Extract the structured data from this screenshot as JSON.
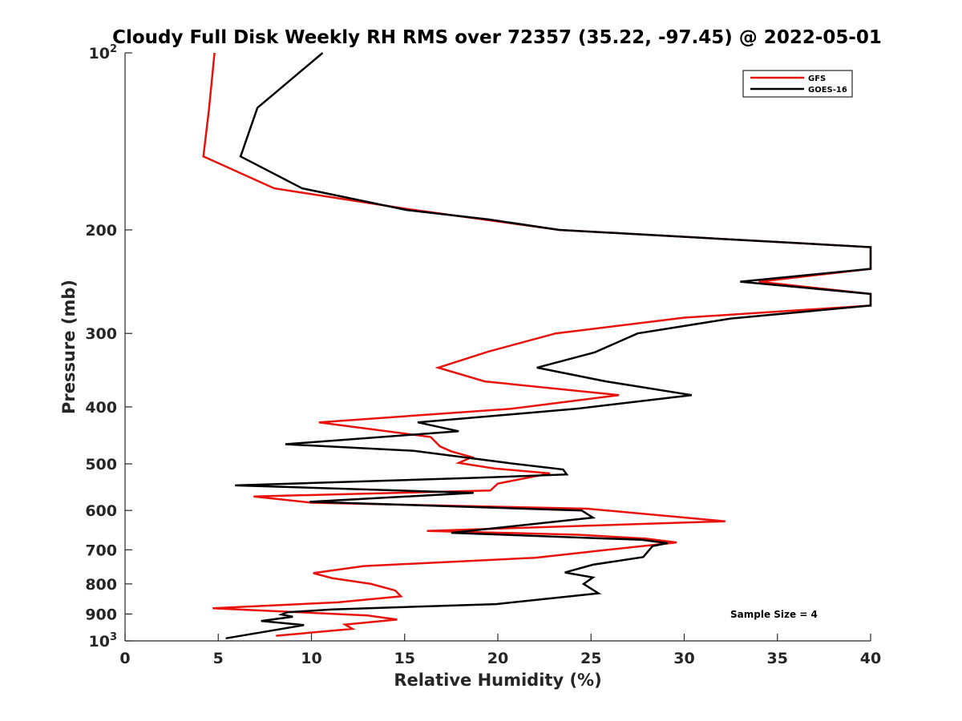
{
  "chart_data": {
    "type": "line",
    "title": "Cloudy Full Disk Weekly RH RMS over 72357 (35.22, -97.45) @ 2022-05-01",
    "xlabel": "Relative Humidity (%)",
    "ylabel": "Pressure (mb)",
    "xlim": [
      0,
      40
    ],
    "ylim": [
      100,
      1000
    ],
    "y_scale": "log",
    "y_reversed": true,
    "grid": false,
    "legend_position": "top-right",
    "x_ticks": [
      0,
      5,
      10,
      15,
      20,
      25,
      30,
      35,
      40
    ],
    "y_ticks": [
      {
        "value": 100,
        "base": "10",
        "exp": "2"
      },
      {
        "value": 200,
        "text": "200"
      },
      {
        "value": 300,
        "text": "300"
      },
      {
        "value": 400,
        "text": "400"
      },
      {
        "value": 500,
        "text": "500"
      },
      {
        "value": 600,
        "text": "600"
      },
      {
        "value": 700,
        "text": "700"
      },
      {
        "value": 800,
        "text": "800"
      },
      {
        "value": 900,
        "text": "900"
      },
      {
        "value": 1000,
        "base": "10",
        "exp": "3"
      }
    ],
    "annotation": "Sample Size = 4",
    "series": [
      {
        "name": "GFS",
        "color": "#e8120c",
        "points": [
          [
            4.8,
            100
          ],
          [
            4.5,
            125
          ],
          [
            4.2,
            150
          ],
          [
            8.0,
            170
          ],
          [
            15.0,
            184
          ],
          [
            23.3,
            200
          ],
          [
            40,
            214
          ],
          [
            40,
            233
          ],
          [
            34.0,
            245
          ],
          [
            40,
            257
          ],
          [
            40,
            269
          ],
          [
            30.0,
            282
          ],
          [
            23.1,
            300
          ],
          [
            19.5,
            322
          ],
          [
            16.8,
            343
          ],
          [
            19.3,
            362
          ],
          [
            26.5,
            382
          ],
          [
            20.7,
            403
          ],
          [
            10.4,
            425
          ],
          [
            16.4,
            450
          ],
          [
            16.9,
            467
          ],
          [
            17.5,
            476
          ],
          [
            18.6,
            487
          ],
          [
            17.9,
            498
          ],
          [
            19.8,
            509
          ],
          [
            22.8,
            519
          ],
          [
            20.0,
            540
          ],
          [
            19.6,
            555
          ],
          [
            6.9,
            568
          ],
          [
            10.0,
            582
          ],
          [
            24.8,
            596
          ],
          [
            32.2,
            626
          ],
          [
            16.2,
            650
          ],
          [
            24.3,
            660
          ],
          [
            27.9,
            670
          ],
          [
            29.6,
            680
          ],
          [
            25.9,
            700
          ],
          [
            22.0,
            722
          ],
          [
            12.8,
            746
          ],
          [
            10.1,
            767
          ],
          [
            11.1,
            782
          ],
          [
            13.2,
            800
          ],
          [
            14.5,
            821
          ],
          [
            14.8,
            840
          ],
          [
            11.4,
            860
          ],
          [
            4.7,
            880
          ],
          [
            13.0,
            905
          ],
          [
            14.6,
            920
          ],
          [
            11.8,
            938
          ],
          [
            12.2,
            954
          ],
          [
            8.1,
            980
          ]
        ]
      },
      {
        "name": "GOES-16",
        "color": "#000000",
        "points": [
          [
            10.6,
            100
          ],
          [
            7.1,
            124
          ],
          [
            6.2,
            150
          ],
          [
            9.5,
            170
          ],
          [
            15.1,
            185
          ],
          [
            19.5,
            192
          ],
          [
            23.3,
            200
          ],
          [
            40,
            214
          ],
          [
            40,
            233
          ],
          [
            33.0,
            245
          ],
          [
            40,
            257
          ],
          [
            40,
            269
          ],
          [
            32.5,
            283
          ],
          [
            27.5,
            300
          ],
          [
            25.2,
            323
          ],
          [
            22.1,
            343
          ],
          [
            25.8,
            362
          ],
          [
            30.4,
            382
          ],
          [
            24.2,
            403
          ],
          [
            15.7,
            425
          ],
          [
            17.9,
            440
          ],
          [
            8.6,
            463
          ],
          [
            15.5,
            475
          ],
          [
            20.5,
            498
          ],
          [
            23.5,
            511
          ],
          [
            23.7,
            521
          ],
          [
            18.9,
            528
          ],
          [
            5.9,
            544
          ],
          [
            18.7,
            560
          ],
          [
            9.9,
            580
          ],
          [
            24.5,
            600
          ],
          [
            25.1,
            617
          ],
          [
            17.5,
            655
          ],
          [
            27.7,
            673
          ],
          [
            29.1,
            682
          ],
          [
            28.3,
            690
          ],
          [
            27.8,
            720
          ],
          [
            25.1,
            742
          ],
          [
            23.6,
            765
          ],
          [
            25.1,
            780
          ],
          [
            24.6,
            800
          ],
          [
            25.4,
            830
          ],
          [
            19.9,
            866
          ],
          [
            11.1,
            884
          ],
          [
            8.7,
            894
          ],
          [
            8.4,
            902
          ],
          [
            9.0,
            910
          ],
          [
            7.3,
            925
          ],
          [
            9.6,
            940
          ],
          [
            5.4,
            990
          ]
        ]
      }
    ]
  }
}
